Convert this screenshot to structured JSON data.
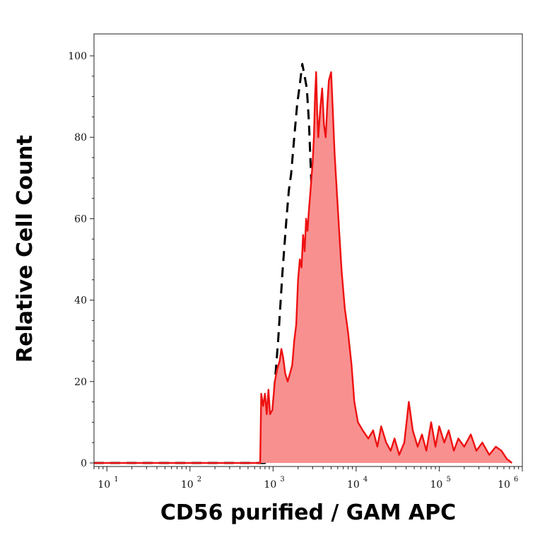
{
  "chart_data": {
    "type": "area",
    "xlabel": "CD56 purified / GAM APC",
    "ylabel": "Relative Cell Count",
    "x_scale": "log",
    "xlim": [
      7,
      1000000
    ],
    "ylim": [
      0,
      100
    ],
    "x_tick_labels": [
      {
        "base": "10",
        "exp": "1",
        "value": 10
      },
      {
        "base": "10",
        "exp": "2",
        "value": 100
      },
      {
        "base": "10",
        "exp": "3",
        "value": 1000
      },
      {
        "base": "10",
        "exp": "4",
        "value": 10000
      },
      {
        "base": "10",
        "exp": "5",
        "value": 100000
      },
      {
        "base": "10",
        "exp": "6",
        "value": 1000000
      }
    ],
    "y_ticks": [
      0,
      20,
      40,
      60,
      80,
      100
    ],
    "y_tick_labels": [
      "0",
      "20",
      "40",
      "60",
      "80",
      "100"
    ],
    "grid": false,
    "colors": {
      "stained_line": "#ee1111",
      "stained_fill": "#f99090",
      "control_line": "#000000"
    },
    "series": [
      {
        "style": "dashed-black-line",
        "points": [
          [
            7,
            0
          ],
          [
            800,
            0
          ],
          [
            850,
            3
          ],
          [
            1000,
            14
          ],
          [
            1150,
            30
          ],
          [
            1300,
            47
          ],
          [
            1450,
            60
          ],
          [
            1550,
            67
          ],
          [
            1650,
            71
          ],
          [
            1800,
            80
          ],
          [
            1950,
            88
          ],
          [
            2100,
            93
          ],
          [
            2250,
            98
          ],
          [
            2400,
            95
          ],
          [
            2550,
            92
          ],
          [
            2700,
            84
          ],
          [
            2850,
            72
          ],
          [
            3000,
            60
          ],
          [
            3200,
            47
          ],
          [
            3500,
            35
          ],
          [
            3800,
            22
          ],
          [
            4200,
            11
          ],
          [
            4800,
            5
          ],
          [
            5600,
            0
          ]
        ]
      },
      {
        "style": "red-filled-area",
        "points": [
          [
            7,
            0
          ],
          [
            650,
            0
          ],
          [
            700,
            0
          ],
          [
            720,
            17
          ],
          [
            760,
            14
          ],
          [
            800,
            17
          ],
          [
            840,
            12
          ],
          [
            880,
            18
          ],
          [
            920,
            12
          ],
          [
            980,
            13
          ],
          [
            1050,
            20
          ],
          [
            1120,
            23
          ],
          [
            1200,
            25
          ],
          [
            1260,
            28
          ],
          [
            1320,
            26
          ],
          [
            1400,
            22
          ],
          [
            1500,
            20
          ],
          [
            1600,
            22
          ],
          [
            1700,
            24
          ],
          [
            1800,
            30
          ],
          [
            1900,
            34
          ],
          [
            2000,
            45
          ],
          [
            2100,
            50
          ],
          [
            2200,
            48
          ],
          [
            2300,
            56
          ],
          [
            2400,
            52
          ],
          [
            2500,
            60
          ],
          [
            2600,
            57
          ],
          [
            2700,
            62
          ],
          [
            2800,
            66
          ],
          [
            3000,
            74
          ],
          [
            3100,
            80
          ],
          [
            3200,
            90
          ],
          [
            3300,
            96
          ],
          [
            3400,
            86
          ],
          [
            3500,
            80
          ],
          [
            3700,
            87
          ],
          [
            3900,
            92
          ],
          [
            4100,
            83
          ],
          [
            4300,
            80
          ],
          [
            4500,
            88
          ],
          [
            4700,
            94
          ],
          [
            5000,
            96
          ],
          [
            5200,
            88
          ],
          [
            5500,
            76
          ],
          [
            5800,
            68
          ],
          [
            6200,
            58
          ],
          [
            6700,
            47
          ],
          [
            7300,
            38
          ],
          [
            8000,
            32
          ],
          [
            8800,
            24
          ],
          [
            9500,
            15
          ],
          [
            10500,
            10
          ],
          [
            12000,
            8
          ],
          [
            14000,
            6
          ],
          [
            16000,
            8
          ],
          [
            18000,
            4
          ],
          [
            20000,
            9
          ],
          [
            23000,
            5
          ],
          [
            26000,
            3
          ],
          [
            29000,
            6
          ],
          [
            33000,
            2
          ],
          [
            38000,
            5
          ],
          [
            43000,
            15
          ],
          [
            48000,
            8
          ],
          [
            55000,
            4
          ],
          [
            62000,
            7
          ],
          [
            70000,
            3
          ],
          [
            80000,
            10
          ],
          [
            90000,
            4
          ],
          [
            100000,
            9
          ],
          [
            115000,
            5
          ],
          [
            130000,
            8
          ],
          [
            150000,
            3
          ],
          [
            170000,
            6
          ],
          [
            200000,
            4
          ],
          [
            240000,
            7
          ],
          [
            280000,
            3
          ],
          [
            330000,
            5
          ],
          [
            400000,
            2
          ],
          [
            480000,
            4
          ],
          [
            560000,
            3
          ],
          [
            650000,
            1
          ],
          [
            750000,
            0
          ]
        ]
      }
    ]
  }
}
